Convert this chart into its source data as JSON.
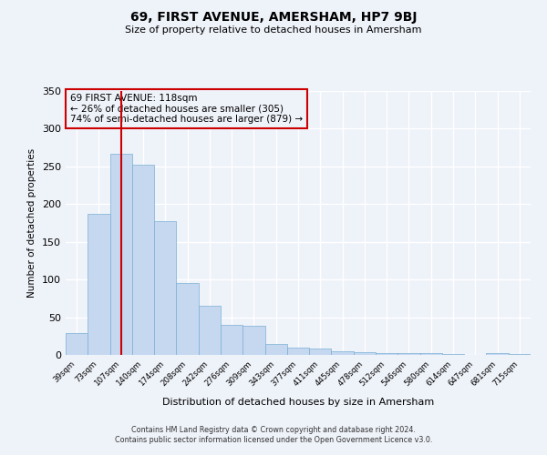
{
  "title": "69, FIRST AVENUE, AMERSHAM, HP7 9BJ",
  "subtitle": "Size of property relative to detached houses in Amersham",
  "xlabel": "Distribution of detached houses by size in Amersham",
  "ylabel": "Number of detached properties",
  "bar_labels": [
    "39sqm",
    "73sqm",
    "107sqm",
    "140sqm",
    "174sqm",
    "208sqm",
    "242sqm",
    "276sqm",
    "309sqm",
    "343sqm",
    "377sqm",
    "411sqm",
    "445sqm",
    "478sqm",
    "512sqm",
    "546sqm",
    "580sqm",
    "614sqm",
    "647sqm",
    "681sqm",
    "715sqm"
  ],
  "bar_heights": [
    29,
    187,
    267,
    252,
    178,
    95,
    65,
    40,
    39,
    14,
    10,
    8,
    5,
    4,
    3,
    2,
    2,
    1,
    0,
    2,
    1
  ],
  "bar_color": "#c5d8f0",
  "bar_edge_color": "#7bafd4",
  "vline_x_index": 2,
  "vline_color": "#cc0000",
  "ylim": [
    0,
    350
  ],
  "yticks": [
    0,
    50,
    100,
    150,
    200,
    250,
    300,
    350
  ],
  "annotation_title": "69 FIRST AVENUE: 118sqm",
  "annotation_line1": "← 26% of detached houses are smaller (305)",
  "annotation_line2": "74% of semi-detached houses are larger (879) →",
  "annotation_box_color": "#cc0000",
  "bg_color": "#eef2f9",
  "footer_line1": "Contains HM Land Registry data © Crown copyright and database right 2024.",
  "footer_line2": "Contains public sector information licensed under the Open Government Licence v3.0."
}
